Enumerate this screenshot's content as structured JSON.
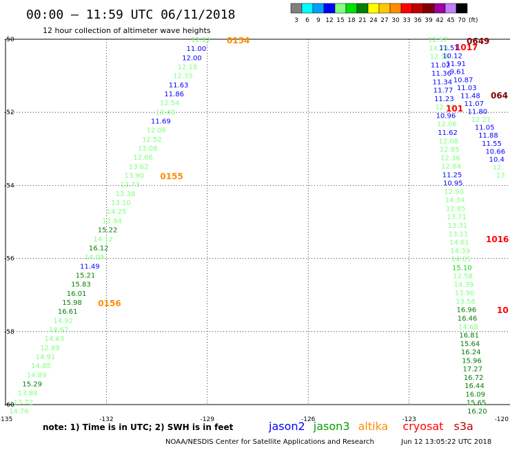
{
  "title": "00:00 – 11:59 UTC 06/11/2018",
  "subtitle": "12 hour collection of altimeter wave heights",
  "legend": {
    "unit": "(ft)",
    "bins": [
      {
        "label": "3",
        "color": "#808080"
      },
      {
        "label": "6",
        "color": "#00ffff"
      },
      {
        "label": "9",
        "color": "#00a0ff"
      },
      {
        "label": "12",
        "color": "#0000ff"
      },
      {
        "label": "15",
        "color": "#80ff80"
      },
      {
        "label": "18",
        "color": "#00e000"
      },
      {
        "label": "21",
        "color": "#008000"
      },
      {
        "label": "24",
        "color": "#ffff00"
      },
      {
        "label": "27",
        "color": "#ffc800"
      },
      {
        "label": "30",
        "color": "#ff8c00"
      },
      {
        "label": "33",
        "color": "#ff0000"
      },
      {
        "label": "36",
        "color": "#c00000"
      },
      {
        "label": "39",
        "color": "#800000"
      },
      {
        "label": "42",
        "color": "#a000a0"
      },
      {
        "label": "45",
        "color": "#c080ff"
      },
      {
        "label": "70",
        "color": "#000000"
      }
    ]
  },
  "map": {
    "lon_range": [
      -135,
      -120
    ],
    "lat_range": [
      -60,
      -50
    ],
    "lon_ticks": [
      {
        "lon": -135,
        "label": "-135"
      },
      {
        "lon": -132,
        "label": "-132"
      },
      {
        "lon": -129,
        "label": "-129"
      },
      {
        "lon": -126,
        "label": "-126"
      },
      {
        "lon": -123,
        "label": "-123"
      },
      {
        "lon": -120,
        "label": "-120"
      }
    ],
    "lat_ticks": [
      {
        "lat": -50,
        "label": "-50"
      },
      {
        "lat": -52,
        "label": "-52"
      },
      {
        "lat": -54,
        "label": "-54"
      },
      {
        "lat": -56,
        "label": "-56"
      },
      {
        "lat": -58,
        "label": "-58"
      },
      {
        "lat": -60,
        "label": "-60"
      }
    ]
  },
  "track_a": {
    "values": [
      "12.12",
      "11.00",
      "12.00",
      "12.18",
      "12.35",
      "11.63",
      "11.86",
      "12.54",
      "12.40",
      "11.69",
      "12.06",
      "12.52",
      "13.08",
      "12.66",
      "13.62",
      "13.90",
      "13.73",
      "13.38",
      "13.10",
      "14.25",
      "12.94",
      "15.22",
      "14.12",
      "16.12",
      "14.09",
      "11.49",
      "15.21",
      "15.83",
      "16.01",
      "15.98",
      "16.61",
      "14.92",
      "14.67",
      "14.63",
      "12.89",
      "14.91",
      "14.85",
      "14.89",
      "15.29",
      "13.88",
      "13.72",
      "14.76"
    ],
    "colors": [
      "#80ff80",
      "#0000ff",
      "#0000ff",
      "#80ff80",
      "#80ff80",
      "#0000ff",
      "#0000ff",
      "#80ff80",
      "#80ff80",
      "#0000ff",
      "#80ff80",
      "#80ff80",
      "#80ff80",
      "#80ff80",
      "#80ff80",
      "#80ff80",
      "#80ff80",
      "#80ff80",
      "#80ff80",
      "#80ff80",
      "#80ff80",
      "#008000",
      "#80ff80",
      "#008000",
      "#80ff80",
      "#0000ff",
      "#008000",
      "#008000",
      "#008000",
      "#008000",
      "#008000",
      "#80ff80",
      "#80ff80",
      "#80ff80",
      "#80ff80",
      "#80ff80",
      "#80ff80",
      "#80ff80",
      "#008000",
      "#80ff80",
      "#80ff80",
      "#80ff80"
    ],
    "time_tags": [
      {
        "text": "0154",
        "after_index": 0,
        "color": "#ff8c00"
      },
      {
        "text": "0155",
        "after_index": 15,
        "color": "#ff8c00"
      },
      {
        "text": "0156",
        "after_index": 29,
        "color": "#ff8c00"
      }
    ]
  },
  "track_b": {
    "values": [
      "12.57",
      "14.70",
      "12.59",
      "11.02",
      "11.36",
      "11.34",
      "11.77",
      "11.23",
      "12.18",
      "10.96",
      "12.06",
      "11.62",
      "12.08",
      "12.85",
      "12.36",
      "12.64",
      "11.25",
      "10.95",
      "12.90",
      "14.34",
      "12.85",
      "13.71",
      "13.31",
      "13.11",
      "14.61",
      "14.39",
      "14.05",
      "15.10",
      "12.58",
      "14.39",
      "13.90",
      "13.58",
      "16.96",
      "16.46",
      "14.68",
      "16.81",
      "15.64",
      "16.24",
      "15.96",
      "17.27",
      "16.72",
      "16.44",
      "16.09",
      "15.65",
      "16.20"
    ],
    "colors": [
      "#80ff80",
      "#80ff80",
      "#80ff80",
      "#0000ff",
      "#0000ff",
      "#0000ff",
      "#0000ff",
      "#0000ff",
      "#80ff80",
      "#0000ff",
      "#80ff80",
      "#0000ff",
      "#80ff80",
      "#80ff80",
      "#80ff80",
      "#80ff80",
      "#0000ff",
      "#0000ff",
      "#80ff80",
      "#80ff80",
      "#80ff80",
      "#80ff80",
      "#80ff80",
      "#80ff80",
      "#80ff80",
      "#80ff80",
      "#80ff80",
      "#00e000",
      "#80ff80",
      "#80ff80",
      "#80ff80",
      "#80ff80",
      "#008000",
      "#008000",
      "#80ff80",
      "#008000",
      "#008000",
      "#008000",
      "#008000",
      "#008000",
      "#008000",
      "#008000",
      "#008000",
      "#008000",
      "#008000"
    ],
    "time_tags": [
      {
        "text": "1017",
        "color": "#ff0000"
      },
      {
        "text": "1016",
        "color": "#ff0000"
      },
      {
        "text": "10",
        "color": "#ff0000"
      }
    ]
  },
  "track_c": {
    "values": [
      "11.51",
      "10.12",
      "11.91",
      "9.61",
      "10.87",
      "11.03",
      "11.48",
      "11.07",
      "11.80",
      "12.21",
      "11.05",
      "11.88",
      "11.55",
      "10.66",
      "10.4",
      "12.",
      "13"
    ],
    "colors": [
      "#0000ff",
      "#0000ff",
      "#0000ff",
      "#0000ff",
      "#0000ff",
      "#0000ff",
      "#0000ff",
      "#0000ff",
      "#0000ff",
      "#80ff80",
      "#0000ff",
      "#0000ff",
      "#0000ff",
      "#0000ff",
      "#0000ff",
      "#80ff80",
      "#80ff80"
    ],
    "time_tags": [
      {
        "text": "0649",
        "color": "#800000"
      },
      {
        "text": "064",
        "color": "#800000"
      },
      {
        "text": "101",
        "color": "#ff0000"
      }
    ]
  },
  "footer": {
    "note": "note: 1) Time is in UTC; 2) SWH is in feet",
    "satellites": [
      {
        "name": "jason2",
        "color": "#0000ff"
      },
      {
        "name": "jason3",
        "color": "#00a000"
      },
      {
        "name": "altika",
        "color": "#ff8c00"
      },
      {
        "name": "cryosat",
        "color": "#ff0000"
      },
      {
        "name": "s3a",
        "color": "#c00000"
      }
    ],
    "credit": "NOAA/NESDIS Center for Satellite Applications and Research",
    "timestamp": "Jun 12 13:05:22 UTC 2018"
  }
}
